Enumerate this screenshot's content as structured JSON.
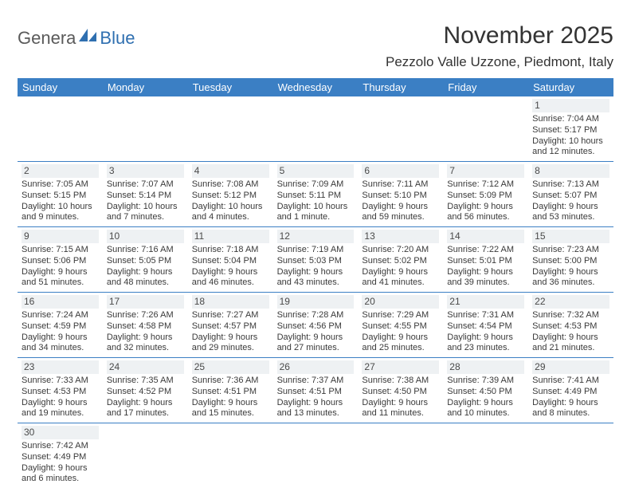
{
  "logo": {
    "part1": "Genera",
    "part2": "Blue"
  },
  "title": "November 2025",
  "location": "Pezzolo Valle Uzzone, Piedmont, Italy",
  "colors": {
    "header_bg": "#3b7fc4",
    "header_text": "#ffffff",
    "daynum_bg": "#eef1f3",
    "row_border": "#3b7fc4",
    "body_text": "#3a3a3a",
    "logo_gray": "#5a5a5a",
    "logo_blue": "#2f6fb0"
  },
  "day_labels": [
    "Sunday",
    "Monday",
    "Tuesday",
    "Wednesday",
    "Thursday",
    "Friday",
    "Saturday"
  ],
  "weeks": [
    [
      null,
      null,
      null,
      null,
      null,
      null,
      {
        "n": "1",
        "sunrise": "Sunrise: 7:04 AM",
        "sunset": "Sunset: 5:17 PM",
        "daylight1": "Daylight: 10 hours",
        "daylight2": "and 12 minutes."
      }
    ],
    [
      {
        "n": "2",
        "sunrise": "Sunrise: 7:05 AM",
        "sunset": "Sunset: 5:15 PM",
        "daylight1": "Daylight: 10 hours",
        "daylight2": "and 9 minutes."
      },
      {
        "n": "3",
        "sunrise": "Sunrise: 7:07 AM",
        "sunset": "Sunset: 5:14 PM",
        "daylight1": "Daylight: 10 hours",
        "daylight2": "and 7 minutes."
      },
      {
        "n": "4",
        "sunrise": "Sunrise: 7:08 AM",
        "sunset": "Sunset: 5:12 PM",
        "daylight1": "Daylight: 10 hours",
        "daylight2": "and 4 minutes."
      },
      {
        "n": "5",
        "sunrise": "Sunrise: 7:09 AM",
        "sunset": "Sunset: 5:11 PM",
        "daylight1": "Daylight: 10 hours",
        "daylight2": "and 1 minute."
      },
      {
        "n": "6",
        "sunrise": "Sunrise: 7:11 AM",
        "sunset": "Sunset: 5:10 PM",
        "daylight1": "Daylight: 9 hours",
        "daylight2": "and 59 minutes."
      },
      {
        "n": "7",
        "sunrise": "Sunrise: 7:12 AM",
        "sunset": "Sunset: 5:09 PM",
        "daylight1": "Daylight: 9 hours",
        "daylight2": "and 56 minutes."
      },
      {
        "n": "8",
        "sunrise": "Sunrise: 7:13 AM",
        "sunset": "Sunset: 5:07 PM",
        "daylight1": "Daylight: 9 hours",
        "daylight2": "and 53 minutes."
      }
    ],
    [
      {
        "n": "9",
        "sunrise": "Sunrise: 7:15 AM",
        "sunset": "Sunset: 5:06 PM",
        "daylight1": "Daylight: 9 hours",
        "daylight2": "and 51 minutes."
      },
      {
        "n": "10",
        "sunrise": "Sunrise: 7:16 AM",
        "sunset": "Sunset: 5:05 PM",
        "daylight1": "Daylight: 9 hours",
        "daylight2": "and 48 minutes."
      },
      {
        "n": "11",
        "sunrise": "Sunrise: 7:18 AM",
        "sunset": "Sunset: 5:04 PM",
        "daylight1": "Daylight: 9 hours",
        "daylight2": "and 46 minutes."
      },
      {
        "n": "12",
        "sunrise": "Sunrise: 7:19 AM",
        "sunset": "Sunset: 5:03 PM",
        "daylight1": "Daylight: 9 hours",
        "daylight2": "and 43 minutes."
      },
      {
        "n": "13",
        "sunrise": "Sunrise: 7:20 AM",
        "sunset": "Sunset: 5:02 PM",
        "daylight1": "Daylight: 9 hours",
        "daylight2": "and 41 minutes."
      },
      {
        "n": "14",
        "sunrise": "Sunrise: 7:22 AM",
        "sunset": "Sunset: 5:01 PM",
        "daylight1": "Daylight: 9 hours",
        "daylight2": "and 39 minutes."
      },
      {
        "n": "15",
        "sunrise": "Sunrise: 7:23 AM",
        "sunset": "Sunset: 5:00 PM",
        "daylight1": "Daylight: 9 hours",
        "daylight2": "and 36 minutes."
      }
    ],
    [
      {
        "n": "16",
        "sunrise": "Sunrise: 7:24 AM",
        "sunset": "Sunset: 4:59 PM",
        "daylight1": "Daylight: 9 hours",
        "daylight2": "and 34 minutes."
      },
      {
        "n": "17",
        "sunrise": "Sunrise: 7:26 AM",
        "sunset": "Sunset: 4:58 PM",
        "daylight1": "Daylight: 9 hours",
        "daylight2": "and 32 minutes."
      },
      {
        "n": "18",
        "sunrise": "Sunrise: 7:27 AM",
        "sunset": "Sunset: 4:57 PM",
        "daylight1": "Daylight: 9 hours",
        "daylight2": "and 29 minutes."
      },
      {
        "n": "19",
        "sunrise": "Sunrise: 7:28 AM",
        "sunset": "Sunset: 4:56 PM",
        "daylight1": "Daylight: 9 hours",
        "daylight2": "and 27 minutes."
      },
      {
        "n": "20",
        "sunrise": "Sunrise: 7:29 AM",
        "sunset": "Sunset: 4:55 PM",
        "daylight1": "Daylight: 9 hours",
        "daylight2": "and 25 minutes."
      },
      {
        "n": "21",
        "sunrise": "Sunrise: 7:31 AM",
        "sunset": "Sunset: 4:54 PM",
        "daylight1": "Daylight: 9 hours",
        "daylight2": "and 23 minutes."
      },
      {
        "n": "22",
        "sunrise": "Sunrise: 7:32 AM",
        "sunset": "Sunset: 4:53 PM",
        "daylight1": "Daylight: 9 hours",
        "daylight2": "and 21 minutes."
      }
    ],
    [
      {
        "n": "23",
        "sunrise": "Sunrise: 7:33 AM",
        "sunset": "Sunset: 4:53 PM",
        "daylight1": "Daylight: 9 hours",
        "daylight2": "and 19 minutes."
      },
      {
        "n": "24",
        "sunrise": "Sunrise: 7:35 AM",
        "sunset": "Sunset: 4:52 PM",
        "daylight1": "Daylight: 9 hours",
        "daylight2": "and 17 minutes."
      },
      {
        "n": "25",
        "sunrise": "Sunrise: 7:36 AM",
        "sunset": "Sunset: 4:51 PM",
        "daylight1": "Daylight: 9 hours",
        "daylight2": "and 15 minutes."
      },
      {
        "n": "26",
        "sunrise": "Sunrise: 7:37 AM",
        "sunset": "Sunset: 4:51 PM",
        "daylight1": "Daylight: 9 hours",
        "daylight2": "and 13 minutes."
      },
      {
        "n": "27",
        "sunrise": "Sunrise: 7:38 AM",
        "sunset": "Sunset: 4:50 PM",
        "daylight1": "Daylight: 9 hours",
        "daylight2": "and 11 minutes."
      },
      {
        "n": "28",
        "sunrise": "Sunrise: 7:39 AM",
        "sunset": "Sunset: 4:50 PM",
        "daylight1": "Daylight: 9 hours",
        "daylight2": "and 10 minutes."
      },
      {
        "n": "29",
        "sunrise": "Sunrise: 7:41 AM",
        "sunset": "Sunset: 4:49 PM",
        "daylight1": "Daylight: 9 hours",
        "daylight2": "and 8 minutes."
      }
    ],
    [
      {
        "n": "30",
        "sunrise": "Sunrise: 7:42 AM",
        "sunset": "Sunset: 4:49 PM",
        "daylight1": "Daylight: 9 hours",
        "daylight2": "and 6 minutes."
      },
      null,
      null,
      null,
      null,
      null,
      null
    ]
  ]
}
